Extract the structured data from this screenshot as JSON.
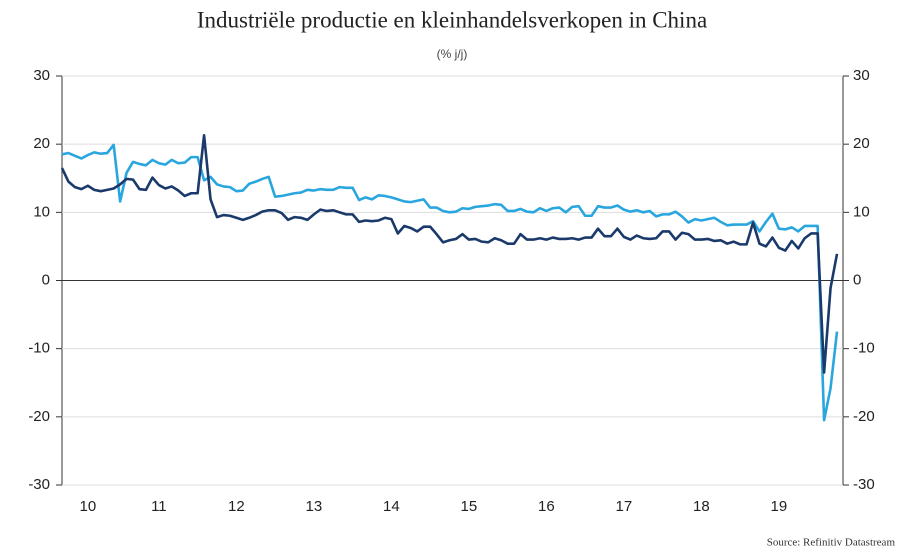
{
  "chart_data": {
    "type": "line",
    "title": "Industriële productie en kleinhandelsverkopen in China",
    "subtitle": "(% j/j)",
    "source": "Source: Refinitiv Datastream",
    "categories": [
      null,
      null,
      null,
      null,
      "10",
      null,
      null,
      null,
      null,
      null,
      null,
      null,
      null,
      null,
      null,
      "11",
      null,
      null,
      null,
      null,
      null,
      null,
      null,
      null,
      null,
      null,
      null,
      "12",
      null,
      null,
      null,
      null,
      null,
      null,
      null,
      null,
      null,
      null,
      null,
      "13",
      null,
      null,
      null,
      null,
      null,
      null,
      null,
      null,
      null,
      null,
      null,
      "14",
      null,
      null,
      null,
      null,
      null,
      null,
      null,
      null,
      null,
      null,
      null,
      "15",
      null,
      null,
      null,
      null,
      null,
      null,
      null,
      null,
      null,
      null,
      null,
      "16",
      null,
      null,
      null,
      null,
      null,
      null,
      null,
      null,
      null,
      null,
      null,
      "17",
      null,
      null,
      null,
      null,
      null,
      null,
      null,
      null,
      null,
      null,
      null,
      "18",
      null,
      null,
      null,
      null,
      null,
      null,
      null,
      null,
      null,
      null,
      null,
      "19",
      null,
      null,
      null,
      null,
      null,
      null,
      null,
      null,
      null
    ],
    "series": [
      {
        "color": "#1b3a6b",
        "values": [
          16.5,
          14.5,
          13.7,
          13.4,
          13.9,
          13.3,
          13.1,
          13.3,
          13.5,
          14.1,
          14.9,
          14.8,
          13.4,
          13.3,
          15.1,
          14.0,
          13.5,
          13.8,
          13.2,
          12.4,
          12.8,
          12.8,
          21.3,
          11.9,
          9.3,
          9.6,
          9.5,
          9.2,
          8.9,
          9.2,
          9.6,
          10.1,
          10.3,
          10.3,
          9.9,
          8.9,
          9.3,
          9.2,
          8.9,
          9.7,
          10.4,
          10.2,
          10.3,
          10.0,
          9.7,
          9.7,
          8.6,
          8.8,
          8.7,
          8.8,
          9.2,
          9.0,
          6.9,
          8.0,
          7.7,
          7.2,
          7.9,
          7.9,
          6.8,
          5.6,
          5.9,
          6.1,
          6.8,
          6.0,
          6.1,
          5.7,
          5.6,
          6.2,
          5.9,
          5.4,
          5.4,
          6.8,
          6.0,
          6.0,
          6.2,
          6.0,
          6.3,
          6.1,
          6.1,
          6.2,
          6.0,
          6.3,
          6.3,
          7.6,
          6.5,
          6.5,
          7.6,
          6.4,
          6.0,
          6.6,
          6.2,
          6.1,
          6.2,
          7.2,
          7.2,
          6.0,
          7.0,
          6.8,
          6.0,
          6.0,
          6.1,
          5.8,
          5.9,
          5.4,
          5.7,
          5.3,
          5.3,
          8.5,
          5.4,
          5.0,
          6.3,
          4.8,
          4.4,
          5.8,
          4.7,
          6.2,
          6.9,
          6.9,
          -13.5,
          -1.1,
          3.9
        ]
      },
      {
        "color": "#2aa6df",
        "values": [
          18.5,
          18.7,
          18.3,
          17.9,
          18.4,
          18.8,
          18.6,
          18.7,
          19.9,
          11.6,
          15.8,
          17.4,
          17.1,
          16.9,
          17.7,
          17.2,
          17.0,
          17.7,
          17.2,
          17.3,
          18.1,
          18.1,
          14.7,
          15.2,
          14.1,
          13.8,
          13.7,
          13.1,
          13.2,
          14.2,
          14.5,
          14.9,
          15.2,
          12.3,
          12.4,
          12.6,
          12.8,
          12.9,
          13.3,
          13.2,
          13.4,
          13.3,
          13.3,
          13.7,
          13.6,
          13.6,
          11.8,
          12.2,
          11.9,
          12.5,
          12.4,
          12.2,
          11.9,
          11.6,
          11.5,
          11.7,
          11.9,
          10.7,
          10.7,
          10.2,
          10.0,
          10.1,
          10.6,
          10.5,
          10.8,
          10.9,
          11.0,
          11.2,
          11.1,
          10.2,
          10.2,
          10.5,
          10.1,
          10.0,
          10.6,
          10.2,
          10.6,
          10.7,
          10.0,
          10.8,
          10.9,
          9.5,
          9.5,
          10.9,
          10.7,
          10.7,
          11.0,
          10.4,
          10.1,
          10.3,
          10.0,
          10.2,
          9.4,
          9.7,
          9.7,
          10.1,
          9.4,
          8.5,
          9.0,
          8.8,
          9.0,
          9.2,
          8.6,
          8.1,
          8.2,
          8.2,
          8.2,
          8.7,
          7.2,
          8.6,
          9.8,
          7.6,
          7.5,
          7.8,
          7.2,
          8.0,
          8.0,
          8.0,
          -20.5,
          -15.8,
          -7.5
        ]
      }
    ],
    "ylim": [
      -30,
      30
    ],
    "yticks": [
      -30,
      -20,
      -10,
      0,
      10,
      20,
      30
    ],
    "y2lim": [
      -30,
      30
    ],
    "y2ticks": [
      -30,
      -20,
      -10,
      0,
      10,
      20,
      30
    ],
    "grid": true
  }
}
